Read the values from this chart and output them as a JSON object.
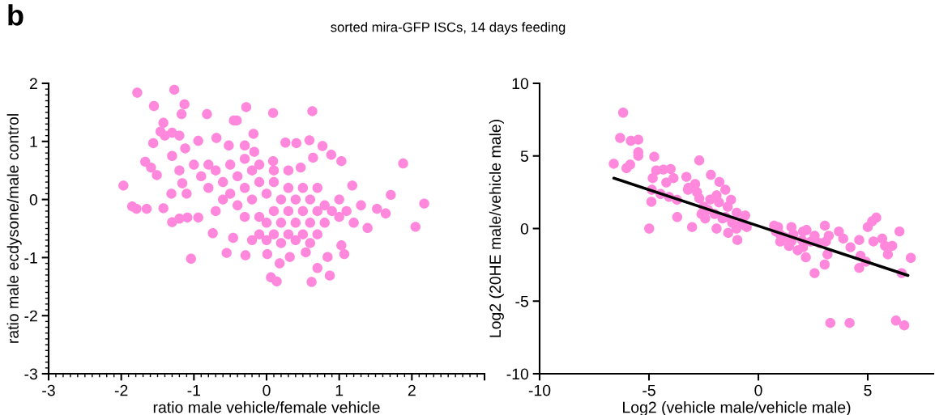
{
  "chart_data": [
    {
      "type": "scatter",
      "title": "sorted mira-GFP ISCs, 14 days feeding",
      "annotations": [
        "b"
      ],
      "xlabel": "ratio male vehicle/female vehicle",
      "ylabel": "ratio male ecdysone/male control",
      "color": "#ff88dd",
      "marker": "circle",
      "grid": false,
      "x": [
        -1.78,
        -1.27,
        -1.55,
        -1.13,
        -1.17,
        -0.28,
        0.09,
        0.63,
        -0.82,
        -0.45,
        -0.41,
        -1.42,
        -1.46,
        -1.56,
        -0.18,
        0.26,
        0.41,
        0.59,
        0.77,
        0.89,
        1.03,
        1.88,
        -1.67,
        -1.59,
        -1.51,
        -1.97,
        -1.85,
        -1.79,
        -1.65,
        -1.42,
        -1.3,
        1.18,
        1.71,
        2.17,
        2.05,
        1.52,
        1.64,
        1.39,
        -1.04,
        -0.55,
        -0.29,
        0.01,
        0.18,
        0.06,
        0.14,
        0.54,
        0.62,
        0.7,
        0.87,
        0.84,
        1.03,
        1.07,
        0.32,
        -0.74,
        -0.46,
        -1.09,
        -0.94,
        -1.2,
        -1.31,
        -1.16,
        -1.12,
        -0.94,
        -0.69,
        -0.52,
        -0.3,
        -0.17,
        0.09,
        0.47,
        0.64,
        -0.9,
        -0.8,
        -0.7,
        -0.6,
        -0.6,
        -0.5,
        -0.5,
        -0.4,
        -0.4,
        -0.3,
        -0.3,
        -0.2,
        -0.2,
        -0.1,
        -0.1,
        -0.1,
        0,
        0,
        0.1,
        0.1,
        0.1,
        0.2,
        0.2,
        0.3,
        0.3,
        0.3,
        0.4,
        0.4,
        0.5,
        0.5,
        0.5,
        0.6,
        0.6,
        0.7,
        0.7,
        0.7,
        0.8,
        0.8,
        0.9,
        1.0,
        1.0,
        1.1,
        1.2,
        1.3,
        -0.7,
        -0.8,
        -1.0,
        -0.2,
        0.0,
        0.2,
        0.4,
        0.6,
        -0.3,
        -0.1,
        0.1,
        0.3,
        -1.1,
        -1.2,
        -1.3,
        -1.4,
        -1.3,
        -1.2
      ],
      "values": [
        1.84,
        1.89,
        1.61,
        1.64,
        1.47,
        1.59,
        1.49,
        1.52,
        1.47,
        1.36,
        1.36,
        1.32,
        1.17,
        0.97,
        1.13,
        0.98,
        0.97,
        1.02,
        0.92,
        0.77,
        0.66,
        0.62,
        0.65,
        0.55,
        0.42,
        0.24,
        -0.12,
        -0.16,
        -0.16,
        -0.15,
        -0.39,
        0.24,
        0.08,
        -0.07,
        -0.47,
        -0.16,
        -0.24,
        -0.49,
        -1.02,
        -0.92,
        -0.96,
        -0.94,
        -1.1,
        -1.34,
        -1.41,
        -0.91,
        -1.42,
        -1.18,
        -1.31,
        -0.99,
        -0.79,
        -0.94,
        -0.99,
        -0.58,
        -0.66,
        -0.31,
        -0.31,
        -0.33,
        0.1,
        0.28,
        0.88,
        1.01,
        1.06,
        0.93,
        0.93,
        0.82,
        0.66,
        0.55,
        0.72,
        0.4,
        0.2,
        0.5,
        0.3,
        0.0,
        0.6,
        0.1,
        0.4,
        -0.1,
        0.2,
        -0.3,
        0.5,
        0.0,
        0.3,
        -0.3,
        -0.6,
        0.1,
        -0.4,
        0.3,
        -0.2,
        -0.6,
        0.0,
        -0.4,
        0.2,
        -0.2,
        -0.6,
        0.0,
        -0.4,
        0.2,
        -0.2,
        -0.6,
        0.0,
        -0.4,
        0.2,
        -0.2,
        -0.6,
        -0.1,
        -0.4,
        -0.2,
        -0.3,
        0.0,
        -0.2,
        -0.4,
        -0.1,
        -0.2,
        0.6,
        0.6,
        -0.7,
        -0.7,
        -0.75,
        -0.7,
        -0.75,
        0.7,
        0.6,
        0.5,
        0.5,
        0.1,
        0.5,
        0.75,
        1.1,
        1.15,
        1.1
      ],
      "xlim": [
        -3,
        3
      ],
      "xticks": [
        -3,
        -2,
        -1,
        0,
        1,
        2,
        {
          "value": 3,
          "label": null
        }
      ],
      "ylim": [
        -3,
        2
      ],
      "yticks": [
        -3,
        -2,
        -1,
        0,
        1,
        2
      ]
    },
    {
      "type": "scatter",
      "xlabel": "Log2 (vehicle male/vehicle male)",
      "ylabel": "Log2 (20HE male/vehicle male)",
      "grid": false,
      "series": [
        {
          "type": "scatter",
          "marker": "circle",
          "color": "#ff88dd",
          "x": [
            -6.18,
            -6.32,
            -5.83,
            -5.49,
            -5.49,
            -5.49,
            -6.61,
            -6.03,
            -5.86,
            -4.76,
            -2.7,
            -4.99,
            -4.89,
            -4.87,
            -4.83,
            -4.67,
            -4.34,
            -4.01,
            -4.47,
            -4.08,
            -3.72,
            -3.71,
            -3.88,
            -4.21,
            -3.29,
            -3.03,
            -2.89,
            -2.17,
            -1.78,
            -3.22,
            -2.7,
            -2.3,
            -1.91,
            -1.51,
            -1.25,
            -0.99,
            -0.72,
            -0.53,
            -0.96,
            -1.38,
            -1.91,
            -2.43,
            -1.64,
            0.72,
            0.99,
            1.51,
            1.51,
            2.04,
            2.04,
            2.17,
            2.57,
            3.04,
            3.09,
            3.16,
            3.03,
            2.57,
            3.22,
            3.68,
            3.88,
            4.21,
            4.61,
            4.67,
            4.61,
            4.91,
            5.0,
            5.2,
            5.39,
            5.26,
            5.66,
            5.79,
            5.92,
            6.12,
            6.45,
            6.97,
            6.55,
            3.29,
            4.17,
            6.29,
            6.67,
            0.8,
            1.2,
            1.6,
            2.0,
            2.4,
            1.4,
            1.8,
            2.8,
            1.0,
            0.9,
            2.2,
            -2.5,
            -2.0,
            -1.5,
            -1.2,
            -0.8,
            -1.8,
            -2.2,
            -2.8,
            -3.2,
            -1.0,
            -1.4,
            -2.6,
            -0.6
          ],
          "values": [
            7.98,
            6.24,
            6.04,
            6.12,
            5.25,
            5.01,
            4.46,
            4.16,
            4.4,
            4.95,
            4.69,
            0.0,
            1.84,
            2.67,
            3.47,
            4.0,
            4.06,
            4.1,
            2.38,
            2.18,
            1.98,
            0.79,
            3.47,
            3.17,
            3.56,
            0.1,
            3.07,
            3.7,
            3.21,
            2.67,
            2.08,
            1.29,
            2.28,
            2.67,
            1.98,
            1.09,
            0.5,
            0.1,
            -0.79,
            -0.3,
            0.0,
            0.69,
            0.69,
            0.2,
            -0.4,
            0.1,
            -0.89,
            -0.2,
            -1.29,
            -1.98,
            -0.5,
            0.2,
            -0.89,
            -1.78,
            -2.48,
            -3.07,
            -0.5,
            -0.2,
            -0.69,
            -1.29,
            -0.79,
            -1.88,
            -2.71,
            -2.28,
            0.1,
            0.5,
            0.75,
            -0.89,
            -0.69,
            -1.19,
            -1.78,
            -1.19,
            -0.2,
            -2.02,
            -3.07,
            -6.5,
            -6.5,
            -6.34,
            -6.67,
            -0.2,
            -0.6,
            -0.4,
            -0.8,
            -0.9,
            -1.2,
            -1.5,
            -1.0,
            -0.9,
            0.1,
            -0.1,
            1.5,
            1.0,
            0.8,
            0.4,
            0.3,
            1.8,
            2.0,
            2.5,
            2.8,
            0.0,
            1.5,
            1.0,
            0.9
          ]
        },
        {
          "type": "line",
          "color": "#000000",
          "x": [
            -6.61,
            6.84
          ],
          "values": [
            3.47,
            -3.23
          ]
        }
      ],
      "xlim": [
        -10,
        8
      ],
      "xticks": [
        -10,
        -5,
        0,
        5
      ],
      "ylim": [
        -10,
        10
      ],
      "yticks": [
        -10,
        -5,
        0,
        5,
        10
      ]
    }
  ]
}
